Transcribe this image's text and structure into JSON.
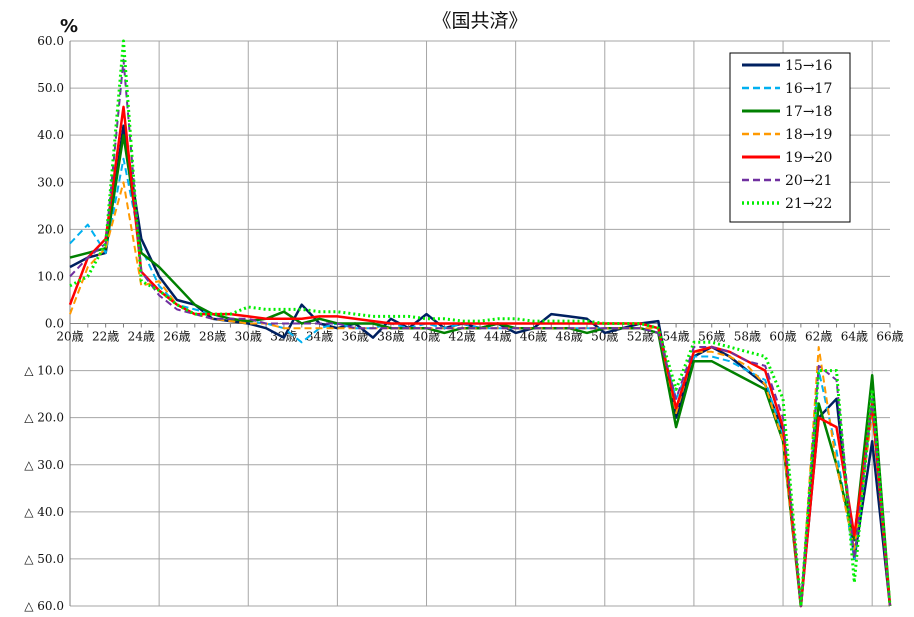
{
  "chart_data": {
    "type": "line",
    "title": "《国共済》",
    "ylabel": "%",
    "ylim": [
      -60,
      60
    ],
    "y_ticks": [
      "60.0",
      "50.0",
      "40.0",
      "30.0",
      "20.0",
      "10.0",
      "0.0",
      "△ 10.0",
      "△ 20.0",
      "△ 30.0",
      "△ 40.0",
      "△ 50.0",
      "△ 60.0"
    ],
    "x_ticks": [
      "20歳",
      "22歳",
      "24歳",
      "26歳",
      "28歳",
      "30歳",
      "32歳",
      "34歳",
      "36歳",
      "38歳",
      "40歳",
      "42歳",
      "44歳",
      "46歳",
      "48歳",
      "50歳",
      "52歳",
      "54歳",
      "56歳",
      "58歳",
      "60歳",
      "62歳",
      "64歳",
      "66歳"
    ],
    "x": [
      20,
      21,
      22,
      23,
      24,
      25,
      26,
      27,
      28,
      29,
      30,
      31,
      32,
      33,
      34,
      35,
      36,
      37,
      38,
      39,
      40,
      41,
      42,
      43,
      44,
      45,
      46,
      47,
      48,
      49,
      50,
      51,
      52,
      53,
      54,
      55,
      56,
      57,
      58,
      59,
      60,
      61,
      62,
      63,
      64,
      65,
      66
    ],
    "grid": true,
    "legend_position": "top-right",
    "series": [
      {
        "name": "15→16",
        "color": "#002060",
        "dash": "solid",
        "width": 2.5,
        "values": [
          12,
          14,
          15,
          42,
          18,
          10,
          5,
          4,
          1,
          0.5,
          0,
          -1,
          -3,
          4,
          0,
          -1,
          0,
          -3,
          1,
          -1,
          2,
          -1,
          0,
          -1,
          0,
          -2,
          -1,
          2,
          1.5,
          1,
          -2,
          -1,
          0,
          0.5,
          -20,
          -7,
          -5,
          -7,
          -10,
          -13,
          -23,
          -60,
          -20,
          -16,
          -50,
          -25,
          -60
        ]
      },
      {
        "name": "16→17",
        "color": "#00B0F0",
        "dash": "dash",
        "width": 2,
        "values": [
          17,
          21,
          15,
          35,
          16,
          8,
          4,
          3,
          2,
          1,
          0.5,
          0,
          -1,
          -4,
          -1,
          0,
          -1,
          -1,
          0,
          -1,
          0,
          -1,
          0,
          -1,
          -1,
          -1,
          -1,
          -1,
          -1,
          -1,
          -1,
          -1,
          -1,
          -2,
          -16,
          -7,
          -7,
          -8,
          -10,
          -12,
          -24,
          -60,
          -10,
          -27,
          -50,
          -18,
          -60
        ]
      },
      {
        "name": "17→18",
        "color": "#008000",
        "dash": "solid",
        "width": 2.5,
        "values": [
          14,
          15,
          16,
          40,
          15,
          12,
          8,
          4,
          2,
          1,
          0.5,
          1,
          2.5,
          0,
          1,
          0,
          0,
          0,
          -1,
          -1,
          -1,
          -2,
          -1,
          -1,
          0,
          -1,
          -1,
          -1,
          -1,
          -2,
          -1,
          -1,
          -1,
          -2,
          -22,
          -8,
          -8,
          -10,
          -12,
          -14,
          -25,
          -60,
          -17,
          -30,
          -46,
          -11,
          -60
        ]
      },
      {
        "name": "18→19",
        "color": "#FF9900",
        "dash": "dash",
        "width": 2,
        "values": [
          2,
          12,
          16,
          30,
          8,
          9,
          4,
          2,
          1,
          0.5,
          0,
          0,
          -1,
          -1,
          -1,
          -1,
          -1,
          -1,
          -1,
          -1,
          -1,
          -1,
          -1,
          -1,
          -1,
          -1,
          -1,
          -1,
          -1,
          -1,
          -1,
          -1,
          -1,
          -1,
          -19,
          -6,
          -6,
          -7,
          -9,
          -13,
          -25,
          -60,
          -5,
          -30,
          -48,
          -19,
          -60
        ]
      },
      {
        "name": "19→20",
        "color": "#FF0000",
        "dash": "solid",
        "width": 2.5,
        "values": [
          4,
          14,
          18,
          46,
          11,
          7,
          4,
          2,
          2,
          2,
          1.5,
          1,
          1,
          1,
          1.5,
          1.5,
          1,
          0.5,
          0,
          0,
          0,
          0,
          0,
          0,
          0,
          0,
          0,
          0,
          0,
          0,
          0,
          0,
          0,
          -1,
          -18,
          -6,
          -5,
          -6,
          -8,
          -10,
          -22,
          -60,
          -20,
          -22,
          -45,
          -17,
          -60
        ]
      },
      {
        "name": "20→21",
        "color": "#7030A0",
        "dash": "dash",
        "width": 2,
        "values": [
          10,
          14,
          17,
          56,
          11,
          6,
          3,
          2,
          1,
          1,
          1,
          0,
          0,
          0,
          0,
          0,
          -1,
          -1,
          -1,
          -1,
          -1,
          -1,
          -1,
          -1,
          -1,
          -1,
          -1,
          -1,
          -1,
          -1,
          -1,
          -1,
          -1,
          -2,
          -16,
          -5,
          -5,
          -6,
          -8,
          -9,
          -20,
          -60,
          -9,
          -12,
          -50,
          -16,
          -60
        ]
      },
      {
        "name": "21→22",
        "color": "#00EE00",
        "dash": "dot",
        "width": 3,
        "values": [
          8,
          10,
          17,
          60,
          9,
          7,
          4,
          2,
          2,
          2,
          3.5,
          3,
          3,
          3,
          2.5,
          2.5,
          2,
          1.5,
          1.5,
          1.5,
          1,
          1,
          0.5,
          0.5,
          1,
          1,
          0.5,
          0.5,
          0.5,
          0.5,
          0,
          0,
          0,
          -1,
          -14,
          -4,
          -4,
          -5,
          -6,
          -7,
          -16,
          -60,
          -10,
          -10,
          -55,
          -14,
          -60
        ]
      }
    ]
  }
}
